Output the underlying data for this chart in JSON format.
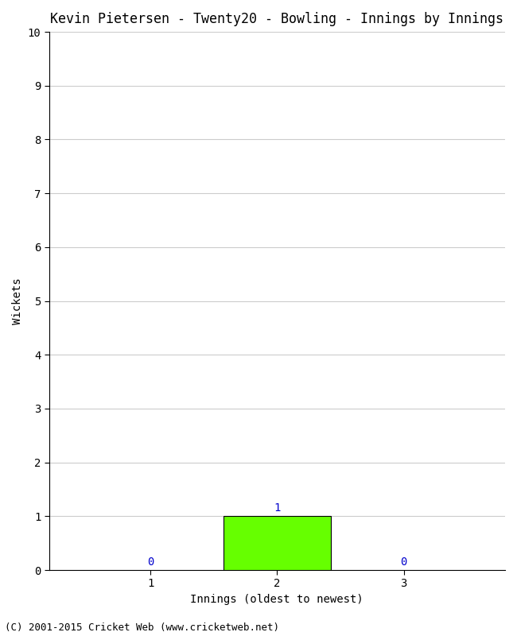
{
  "title": "Kevin Pietersen - Twenty20 - Bowling - Innings by Innings",
  "xlabel": "Innings (oldest to newest)",
  "ylabel": "Wickets",
  "categories": [
    1,
    2,
    3
  ],
  "values": [
    0,
    1,
    0
  ],
  "bar_color": "#66ff00",
  "label_color": "#0000cc",
  "ylim": [
    0,
    10
  ],
  "yticks": [
    0,
    1,
    2,
    3,
    4,
    5,
    6,
    7,
    8,
    9,
    10
  ],
  "xticks": [
    1,
    2,
    3
  ],
  "background_color": "#ffffff",
  "grid_color": "#cccccc",
  "footer": "(C) 2001-2015 Cricket Web (www.cricketweb.net)",
  "title_fontsize": 12,
  "axis_label_fontsize": 10,
  "tick_fontsize": 10,
  "footer_fontsize": 9,
  "bar_width": 0.85
}
